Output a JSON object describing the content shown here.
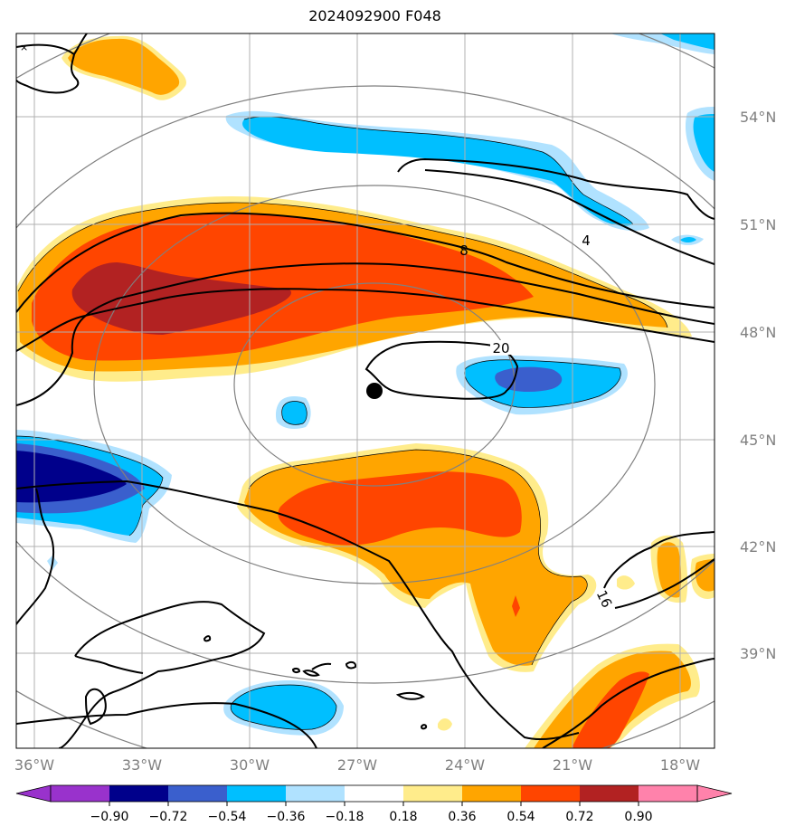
{
  "title": "2024092900 F048",
  "longitude_labels": [
    "36°W",
    "33°W",
    "30°W",
    "27°W",
    "24°W",
    "21°W",
    "18°W"
  ],
  "latitude_labels": [
    "54°N",
    "51°N",
    "48°N",
    "45°N",
    "42°N",
    "39°N"
  ],
  "contour_labels": [
    "4",
    "8",
    "20",
    "16"
  ],
  "colorbar": {
    "tick_labels": [
      "−0.90",
      "−0.72",
      "−0.54",
      "−0.36",
      "−0.18",
      "0.18",
      "0.36",
      "0.54",
      "0.72",
      "0.90"
    ],
    "colors": [
      "#9932cc",
      "#00008b",
      "#3a5fcd",
      "#00bfff",
      "#b0e2ff",
      "#ffffff",
      "#ffec8b",
      "#ffa500",
      "#ff4500",
      "#b22222",
      "#ff82ab"
    ]
  },
  "colors": {
    "deep_red": "#b22222",
    "red_orange": "#ff4500",
    "orange": "#ffa500",
    "light_yellow": "#ffec8b",
    "navy": "#00008b",
    "royal_blue": "#3a5fcd",
    "deep_sky_blue": "#00bfff",
    "light_blue": "#b0e2ff",
    "gridline": "#b0b0b0",
    "range_ring": "#808080",
    "axis_label": "#808080"
  },
  "center_marker": "storm-center-dot"
}
